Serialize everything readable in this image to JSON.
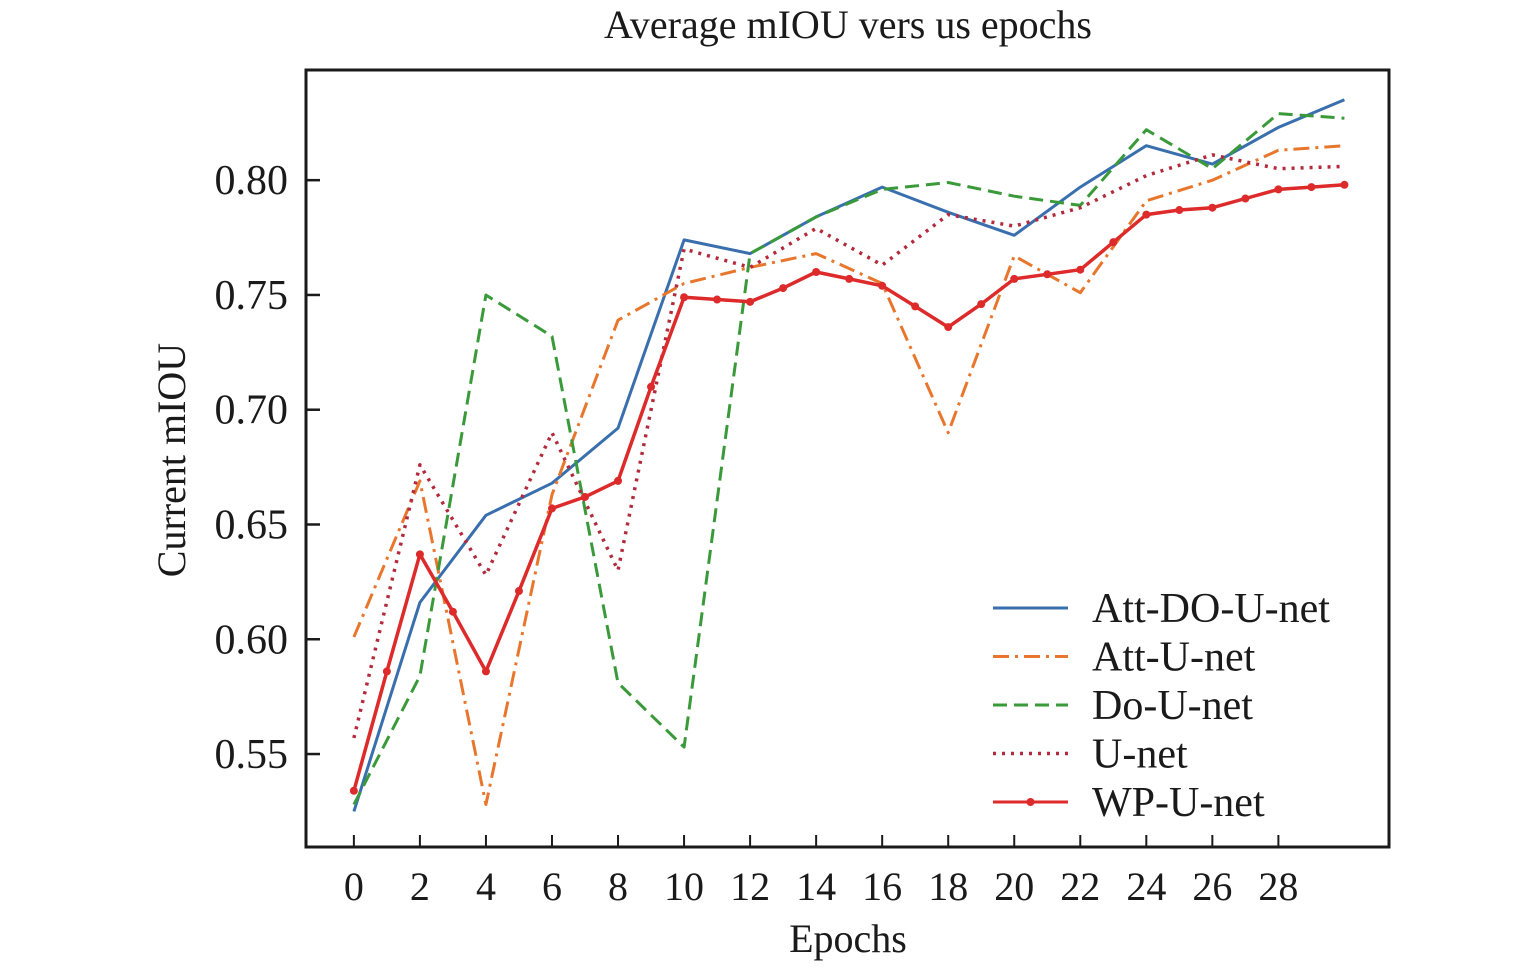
{
  "chart_data": {
    "type": "line",
    "title": "Average mIOU vers us epochs",
    "xlabel": "Epochs",
    "ylabel": "Current mIOU",
    "xlim": [
      -1.45,
      31.35
    ],
    "ylim": [
      0.5095,
      0.848
    ],
    "xticks": [
      0,
      2,
      4,
      6,
      8,
      10,
      12,
      14,
      16,
      18,
      20,
      22,
      24,
      26,
      28
    ],
    "xtick_labels": [
      "0",
      "2",
      "4",
      "6",
      "8",
      "10",
      "12",
      "14",
      "16",
      "18",
      "20",
      "22",
      "24",
      "26",
      "28"
    ],
    "yticks": [
      0.55,
      0.6,
      0.65,
      0.7,
      0.75,
      0.8
    ],
    "ytick_labels": [
      "0.55",
      "0.60",
      "0.65",
      "0.70",
      "0.75",
      "0.80"
    ],
    "grid": false,
    "legend_position": "lower-right",
    "series": [
      {
        "name": "Att-DO-U-net",
        "color": "#3a6fae",
        "style": "solid",
        "marker": false,
        "x": [
          0,
          2,
          4,
          6,
          8,
          10,
          12,
          14,
          16,
          18,
          20,
          22,
          24,
          26,
          28,
          30
        ],
        "values": [
          0.525,
          0.616,
          0.654,
          0.668,
          0.692,
          0.774,
          0.768,
          0.784,
          0.797,
          0.786,
          0.776,
          0.797,
          0.815,
          0.807,
          0.823,
          0.835
        ]
      },
      {
        "name": "Att-U-net",
        "color": "#e8762c",
        "style": "dashdot",
        "marker": false,
        "x": [
          0,
          2,
          4,
          6,
          8,
          10,
          12,
          14,
          16,
          18,
          20,
          22,
          24,
          26,
          28,
          30
        ],
        "values": [
          0.601,
          0.669,
          0.528,
          0.663,
          0.739,
          0.755,
          0.762,
          0.768,
          0.755,
          0.69,
          0.767,
          0.751,
          0.791,
          0.8,
          0.813,
          0.815
        ]
      },
      {
        "name": "Do-U-net",
        "color": "#3a9a3a",
        "style": "dashed",
        "marker": false,
        "x": [
          0,
          2,
          4,
          6,
          8,
          10,
          12,
          14,
          16,
          18,
          20,
          22,
          24,
          26,
          28,
          30
        ],
        "values": [
          0.528,
          0.584,
          0.75,
          0.732,
          0.581,
          0.553,
          0.768,
          0.784,
          0.796,
          0.799,
          0.793,
          0.789,
          0.822,
          0.805,
          0.829,
          0.827
        ]
      },
      {
        "name": "U-net",
        "color": "#b22a3c",
        "style": "dotted",
        "marker": false,
        "x": [
          0,
          2,
          4,
          6,
          8,
          10,
          12,
          14,
          16,
          18,
          20,
          22,
          24,
          26,
          28,
          30
        ],
        "values": [
          0.557,
          0.676,
          0.628,
          0.69,
          0.63,
          0.77,
          0.762,
          0.779,
          0.763,
          0.785,
          0.78,
          0.788,
          0.802,
          0.811,
          0.805,
          0.806
        ]
      },
      {
        "name": "WP-U-net",
        "color": "#dd2a2a",
        "style": "solid",
        "marker": true,
        "x": [
          0,
          1,
          2,
          3,
          4,
          5,
          6,
          7,
          8,
          9,
          10,
          11,
          12,
          13,
          14,
          15,
          16,
          17,
          18,
          19,
          20,
          21,
          22,
          23,
          24,
          25,
          26,
          27,
          28,
          29,
          30
        ],
        "values": [
          0.534,
          0.586,
          0.637,
          0.612,
          0.586,
          0.621,
          0.657,
          0.662,
          0.669,
          0.71,
          0.749,
          0.748,
          0.747,
          0.753,
          0.76,
          0.757,
          0.754,
          0.745,
          0.736,
          0.746,
          0.757,
          0.759,
          0.761,
          0.773,
          0.785,
          0.787,
          0.788,
          0.792,
          0.796,
          0.797,
          0.798
        ]
      }
    ]
  }
}
